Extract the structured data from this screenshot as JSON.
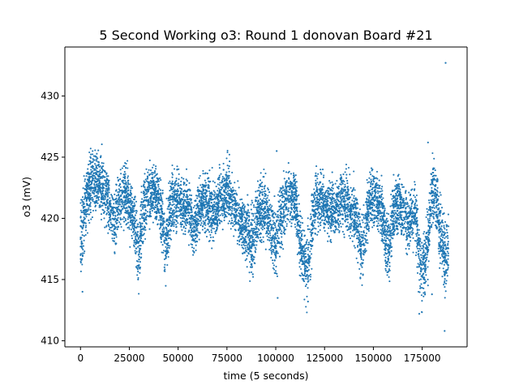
{
  "chart_data": {
    "type": "scatter",
    "title": "5 Second Working o3: Round 1 donovan Board #21",
    "xlabel": "time (5 seconds)",
    "ylabel": "o3 (mV)",
    "xlim": [
      -8000,
      198000
    ],
    "ylim": [
      409.5,
      434.0
    ],
    "xticks": [
      0,
      25000,
      50000,
      75000,
      100000,
      125000,
      150000,
      175000
    ],
    "xtick_labels": [
      "0",
      "25000",
      "50000",
      "75000",
      "100000",
      "125000",
      "150000",
      "175000"
    ],
    "yticks": [
      410,
      415,
      420,
      425,
      430
    ],
    "ytick_labels": [
      "410",
      "415",
      "420",
      "425",
      "430"
    ],
    "grid": false,
    "marker_color": "#1f77b4",
    "series": [
      {
        "x": [
          0,
          1000,
          2000,
          3000,
          5000,
          7000,
          10000,
          13000,
          15000,
          17000,
          20000,
          23000,
          25000,
          27000,
          29000,
          30000,
          31000,
          33000,
          35000,
          38000,
          40000,
          42000,
          43000,
          44000,
          45000,
          47000,
          50000,
          53000,
          56000,
          58000,
          60000,
          63000,
          66000,
          69000,
          71000,
          73000,
          75000,
          77000,
          80000,
          83000,
          86000,
          88000,
          90000,
          92000,
          95000,
          98000,
          100000,
          101500,
          103000,
          105000,
          107000,
          110000,
          112000,
          114000,
          116000,
          118000,
          120000,
          123000,
          126000,
          130000,
          134000,
          138000,
          141000,
          143000,
          144500,
          146000,
          148000,
          150000,
          153000,
          155000,
          156500,
          158000,
          159000,
          161000,
          163000,
          166000,
          168000,
          170000,
          172000,
          173500,
          175000,
          176500,
          178000,
          179500,
          181000,
          182500,
          184000,
          185500,
          186500,
          187500,
          188500
        ],
        "y": [
          418.5,
          419.5,
          420.5,
          421.5,
          422.5,
          423.0,
          422.8,
          422.0,
          421.0,
          419.5,
          421.5,
          422.0,
          421.0,
          420.0,
          418.0,
          417.5,
          419.0,
          421.0,
          422.0,
          422.0,
          421.5,
          420.0,
          418.5,
          418.0,
          419.5,
          421.5,
          421.5,
          421.0,
          420.5,
          419.0,
          420.5,
          421.5,
          421.0,
          420.5,
          421.5,
          422.0,
          422.5,
          421.5,
          420.5,
          419.5,
          418.5,
          418.0,
          419.5,
          421.0,
          420.5,
          419.0,
          418.0,
          419.0,
          420.5,
          421.5,
          422.0,
          421.5,
          419.0,
          416.5,
          416.0,
          418.5,
          421.0,
          421.5,
          421.0,
          420.5,
          421.5,
          421.0,
          420.0,
          418.5,
          417.5,
          419.5,
          421.5,
          421.5,
          421.0,
          420.0,
          418.0,
          417.5,
          419.5,
          421.0,
          421.0,
          420.5,
          419.5,
          420.5,
          420.0,
          416.5,
          415.5,
          416.5,
          418.5,
          421.5,
          422.5,
          421.0,
          419.0,
          418.0,
          416.5,
          417.0,
          417.5
        ],
        "spread": [
          2.8,
          2.6,
          2.5,
          2.3,
          2.3,
          2.3,
          2.2,
          2.1,
          2.0,
          2.0,
          2.2,
          2.2,
          2.2,
          2.2,
          2.3,
          2.5,
          2.4,
          2.2,
          2.0,
          2.0,
          2.1,
          2.2,
          2.4,
          2.6,
          2.4,
          2.1,
          2.0,
          2.0,
          2.0,
          2.0,
          2.0,
          2.0,
          2.0,
          2.1,
          2.1,
          2.1,
          2.2,
          2.1,
          2.0,
          2.0,
          2.2,
          2.5,
          2.4,
          2.2,
          2.1,
          2.3,
          2.7,
          2.8,
          2.6,
          2.2,
          2.0,
          2.0,
          2.2,
          2.6,
          2.8,
          2.6,
          2.1,
          2.0,
          2.0,
          2.0,
          2.0,
          2.0,
          2.1,
          2.4,
          2.6,
          2.4,
          2.0,
          2.0,
          2.0,
          2.1,
          2.4,
          2.7,
          2.5,
          2.1,
          2.0,
          2.1,
          2.2,
          2.3,
          2.5,
          2.7,
          2.8,
          2.8,
          2.8,
          2.8,
          2.6,
          2.4,
          2.5,
          2.7,
          2.8,
          2.7,
          2.4
        ],
        "outliers": [
          [
            1000,
            414.0
          ],
          [
            29500,
            415.0
          ],
          [
            43000,
            416.0
          ],
          [
            100500,
            425.5
          ],
          [
            101000,
            413.5
          ],
          [
            116500,
            413.2
          ],
          [
            173500,
            412.2
          ],
          [
            178000,
            426.2
          ],
          [
            180000,
            413.8
          ],
          [
            186500,
            410.8
          ],
          [
            187000,
            432.7
          ]
        ]
      }
    ]
  }
}
